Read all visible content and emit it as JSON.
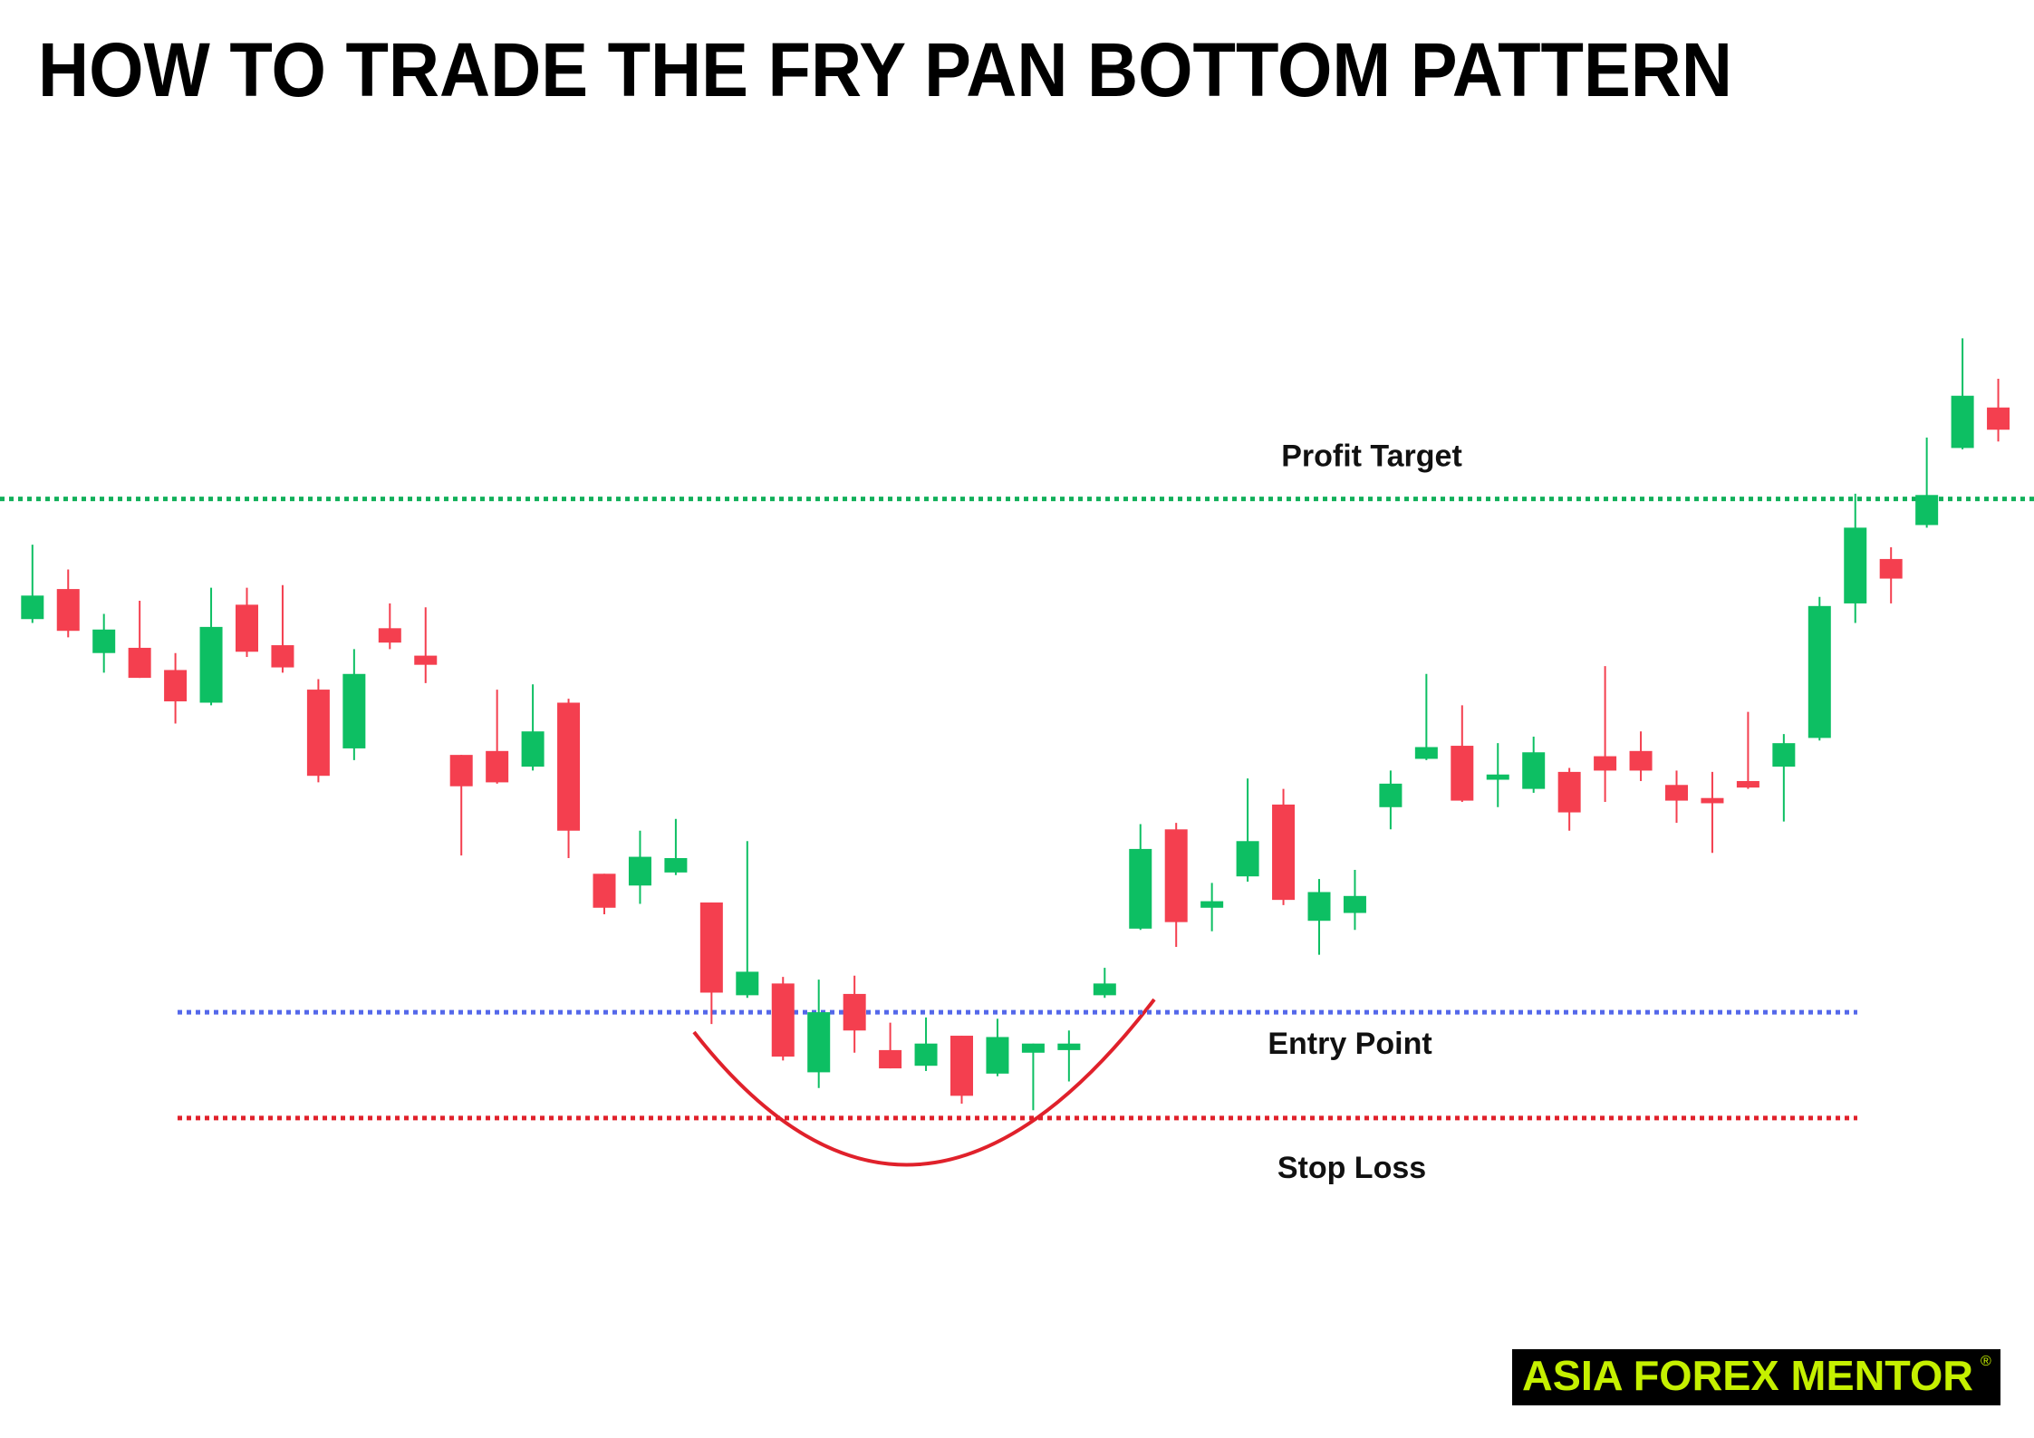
{
  "chart_data": {
    "type": "candlestick",
    "title": "HOW TO TRADE THE FRY PAN BOTTOM PATTERN",
    "open": [
      627,
      650,
      601,
      605,
      588,
      563,
      638,
      607,
      573,
      528,
      620,
      599,
      523,
      526,
      514,
      563,
      432,
      423,
      433,
      410,
      339,
      348,
      280,
      340,
      297,
      285,
      308,
      279,
      295,
      297,
      339,
      390,
      466,
      406,
      430,
      485,
      396,
      402,
      483,
      520,
      530,
      504,
      497,
      510,
      522,
      526,
      500,
      490,
      503,
      514,
      536,
      639,
      673,
      699,
      758,
      789
    ],
    "high": [
      684,
      665,
      631,
      641,
      601,
      651,
      651,
      653,
      581,
      604,
      639,
      636,
      523,
      573,
      577,
      566,
      432,
      465,
      474,
      410,
      457,
      353,
      351,
      354,
      318,
      322,
      308,
      321,
      302,
      312,
      360,
      470,
      471,
      425,
      505,
      497,
      428,
      435,
      511,
      585,
      561,
      532,
      537,
      513,
      591,
      541,
      511,
      510,
      556,
      539,
      644,
      723,
      682,
      766,
      842,
      811
    ],
    "low": [
      624,
      613,
      586,
      582,
      547,
      561,
      598,
      586,
      502,
      519,
      604,
      578,
      446,
      501,
      511,
      444,
      401,
      409,
      431,
      317,
      337,
      289,
      268,
      295,
      283,
      281,
      256,
      277,
      251,
      273,
      337,
      389,
      376,
      388,
      426,
      408,
      370,
      389,
      466,
      519,
      487,
      483,
      494,
      465,
      487,
      503,
      471,
      448,
      497,
      472,
      534,
      624,
      639,
      697,
      757,
      763
    ],
    "close": [
      645,
      618,
      619,
      582,
      564,
      621,
      602,
      590,
      507,
      585,
      609,
      592,
      499,
      502,
      541,
      465,
      406,
      445,
      444,
      341,
      357,
      292,
      326,
      312,
      283,
      302,
      262,
      307,
      302,
      302,
      348,
      451,
      395,
      411,
      457,
      412,
      418,
      415,
      501,
      529,
      488,
      508,
      525,
      479,
      511,
      511,
      488,
      486,
      498,
      532,
      637,
      697,
      658,
      722,
      798,
      772
    ],
    "up_color": "#0dbf63",
    "down_color": "#f43f4f",
    "ylim": [
      0,
      1101
    ],
    "levels": [
      {
        "name": "Profit Target",
        "value": 719,
        "color": "#12b05a"
      },
      {
        "name": "Entry Point",
        "value": 326,
        "color": "#5468ea"
      },
      {
        "name": "Stop Loss",
        "value": 245,
        "color": "#e0212b"
      }
    ],
    "logo": {
      "text": "ASIA FOREX MENTOR",
      "mark": "®"
    }
  }
}
